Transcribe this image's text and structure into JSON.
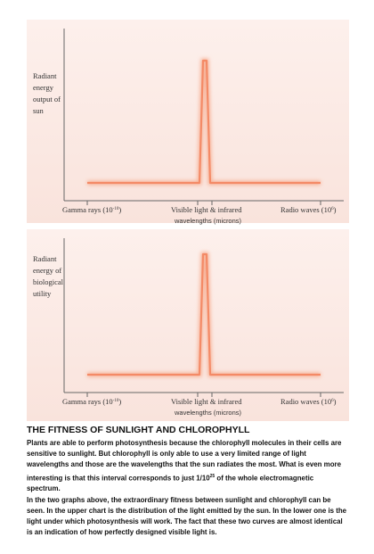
{
  "charts": [
    {
      "y_label": [
        "Radiant",
        "energy",
        "output of",
        "sun"
      ],
      "x_labels": {
        "left": {
          "text": "Gamma rays (10",
          "exp": "-10",
          "close": ")"
        },
        "middle": "Visible light & infrared",
        "right": {
          "text": "Radio waves (10",
          "exp": "6",
          "close": ")"
        }
      },
      "x_unit": "wavelengths (microns)"
    },
    {
      "y_label": [
        "Radiant",
        "energy of",
        "biological",
        "utility"
      ],
      "x_labels": {
        "left": {
          "text": "Gamma rays (10",
          "exp": "-10",
          "close": ")"
        },
        "middle": "Visible light & infrared",
        "right": {
          "text": "Radio waves (10",
          "exp": "6",
          "close": ")"
        }
      },
      "x_unit": "wavelengths (microns)"
    }
  ],
  "article": {
    "title": "THE FITNESS OF SUNLIGHT AND CHLOROPHYLL",
    "paragraphs": [
      {
        "before": "Plants are able to perform photosynthesis because the chlorophyll molecules in their cells are sensitive to sunlight. But chlorophyll is only able to use a very limited range of light wavelengths and those are the wavelengths that the sun radiates the most. What is even more interesting is that this interval corresponds to just 1/10",
        "sup": "25",
        "after": " of the whole electromagnetic spectrum."
      },
      {
        "before": "In the two graphs above, the extraordinary fitness between sunlight and chlorophyll can be seen. In the upper chart is the distribution of the light emitted by the sun. In the lower one is the light under which photosynthesis will work. The fact that these two curves are almost identical is an indication of how perfectly designed visible light is.",
        "sup": "",
        "after": ""
      }
    ]
  }
}
